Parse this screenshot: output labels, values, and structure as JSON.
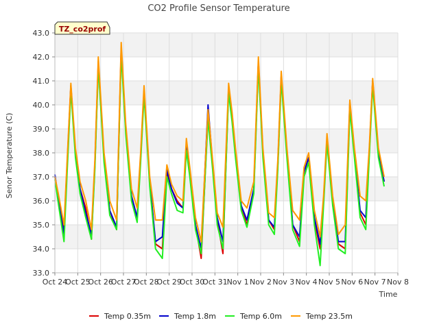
{
  "chart_data": {
    "type": "line",
    "title": "CO2 Profile Sensor Temperature",
    "xlabel": "Time",
    "ylabel": "Senor Temperature (C)",
    "badge": "TZ_co2prof",
    "ylim": [
      33.0,
      43.0
    ],
    "yticks": [
      "33.0",
      "34.0",
      "35.0",
      "36.0",
      "37.0",
      "38.0",
      "39.0",
      "40.0",
      "41.0",
      "42.0",
      "43.0"
    ],
    "xlim": [
      0,
      15
    ],
    "xticks": [
      "Oct 24",
      "Oct 25",
      "Oct 26",
      "Oct 27",
      "Oct 28",
      "Oct 29",
      "Oct 30",
      "Oct 31",
      "Nov 1",
      "Nov 2",
      "Nov 3",
      "Nov 4",
      "Nov 5",
      "Nov 6",
      "Nov 7",
      "Nov 8"
    ],
    "x": [
      0.0,
      0.15,
      0.4,
      0.7,
      0.9,
      1.1,
      1.35,
      1.6,
      1.75,
      1.9,
      2.15,
      2.4,
      2.7,
      2.9,
      3.1,
      3.35,
      3.6,
      3.75,
      3.9,
      4.15,
      4.4,
      4.7,
      4.9,
      5.1,
      5.35,
      5.6,
      5.75,
      5.9,
      6.15,
      6.4,
      6.7,
      6.9,
      7.1,
      7.35,
      7.6,
      7.75,
      7.9,
      8.15,
      8.4,
      8.7,
      8.9,
      9.1,
      9.35,
      9.6,
      9.75,
      9.9,
      10.15,
      10.4,
      10.7,
      10.9,
      11.1,
      11.35,
      11.6,
      11.75,
      11.9,
      12.15,
      12.4,
      12.7,
      12.9,
      13.1,
      13.35,
      13.6,
      13.75,
      13.9,
      14.15,
      14.4
    ],
    "series": [
      {
        "name": "Temp 0.35m",
        "color": "#dd0000",
        "values": [
          37.0,
          36.0,
          34.8,
          40.8,
          38.0,
          36.5,
          35.7,
          34.4,
          37.5,
          41.8,
          37.8,
          35.6,
          34.8,
          42.4,
          39.0,
          36.2,
          35.3,
          37.8,
          40.6,
          36.8,
          34.2,
          34.0,
          37.2,
          36.5,
          36.0,
          35.7,
          38.3,
          37.2,
          35.0,
          33.6,
          39.6,
          37.5,
          35.2,
          33.8,
          40.7,
          39.5,
          38.0,
          35.8,
          35.0,
          36.5,
          41.8,
          38.0,
          35.2,
          34.8,
          37.5,
          41.2,
          38.0,
          35.0,
          34.3,
          37.2,
          37.8,
          35.2,
          34.0,
          36.0,
          38.6,
          36.0,
          34.2,
          34.0,
          40.0,
          38.0,
          35.5,
          35.0,
          38.0,
          41.0,
          38.0,
          36.8
        ]
      },
      {
        "name": "Temp 1.8m",
        "color": "#0000cc",
        "values": [
          37.1,
          36.1,
          34.6,
          40.8,
          38.0,
          36.5,
          35.5,
          34.6,
          37.5,
          41.7,
          37.8,
          35.6,
          34.9,
          42.3,
          39.0,
          36.2,
          35.3,
          37.8,
          40.6,
          36.8,
          34.3,
          34.5,
          37.3,
          36.5,
          35.9,
          35.7,
          38.3,
          37.2,
          35.0,
          34.0,
          40.0,
          37.5,
          35.3,
          34.3,
          40.7,
          39.5,
          38.0,
          35.8,
          35.2,
          36.5,
          41.8,
          38.0,
          35.2,
          34.9,
          37.5,
          41.2,
          38.0,
          35.0,
          34.5,
          37.2,
          37.8,
          35.3,
          34.2,
          36.0,
          38.6,
          36.0,
          34.3,
          34.3,
          40.1,
          38.0,
          35.6,
          35.3,
          38.0,
          41.0,
          38.0,
          36.8
        ]
      },
      {
        "name": "Temp 6.0m",
        "color": "#22ee22",
        "values": [
          36.9,
          35.9,
          34.3,
          40.6,
          37.8,
          36.3,
          35.3,
          34.4,
          37.3,
          41.6,
          37.6,
          35.4,
          34.8,
          42.1,
          38.8,
          36.0,
          35.1,
          37.6,
          40.4,
          36.6,
          34.0,
          33.6,
          37.0,
          36.3,
          35.6,
          35.5,
          38.1,
          37.0,
          34.8,
          33.8,
          39.4,
          37.3,
          35.0,
          34.0,
          40.5,
          39.3,
          37.8,
          35.6,
          34.9,
          36.3,
          41.6,
          37.8,
          35.0,
          34.6,
          37.3,
          41.0,
          37.8,
          34.8,
          34.1,
          37.0,
          37.6,
          35.0,
          33.3,
          35.8,
          38.4,
          35.8,
          34.0,
          33.8,
          39.8,
          37.8,
          35.3,
          34.8,
          37.8,
          40.8,
          37.8,
          36.6
        ]
      },
      {
        "name": "Temp 23.5m",
        "color": "#ff9900",
        "values": [
          37.0,
          36.3,
          35.0,
          40.9,
          38.2,
          36.8,
          36.0,
          34.8,
          37.7,
          42.0,
          38.0,
          36.0,
          35.2,
          42.6,
          39.2,
          36.5,
          35.7,
          38.0,
          40.8,
          37.0,
          35.2,
          35.2,
          37.5,
          36.7,
          36.2,
          36.0,
          38.6,
          37.4,
          35.3,
          34.3,
          39.8,
          37.7,
          35.5,
          34.9,
          40.9,
          39.7,
          38.2,
          36.0,
          35.7,
          36.8,
          42.0,
          38.2,
          35.5,
          35.3,
          37.7,
          41.4,
          38.2,
          35.6,
          35.2,
          37.4,
          38.0,
          35.6,
          34.5,
          36.2,
          38.8,
          36.2,
          34.6,
          35.0,
          40.2,
          38.2,
          36.2,
          36.0,
          38.2,
          41.1,
          38.2,
          37.0
        ]
      }
    ]
  }
}
